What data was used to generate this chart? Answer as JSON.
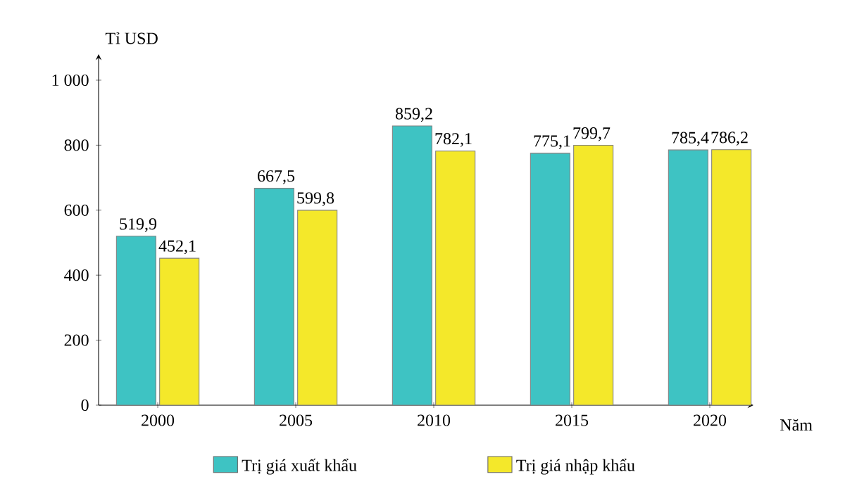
{
  "chart_data": {
    "type": "bar",
    "xlabel": "Năm",
    "ylabel": "Tỉ USD",
    "categories": [
      "2000",
      "2005",
      "2010",
      "2015",
      "2020"
    ],
    "series": [
      {
        "name": "Trị giá xuất khẩu",
        "color": "#3ec3c3",
        "values": [
          519.9,
          667.5,
          859.2,
          775.1,
          785.4
        ],
        "value_labels": [
          "519,9",
          "667,5",
          "859,2",
          "775,1",
          "785,4"
        ]
      },
      {
        "name": "Trị giá nhập khẩu",
        "color": "#f4e82a",
        "values": [
          452.1,
          599.8,
          782.1,
          799.7,
          786.2
        ],
        "value_labels": [
          "452,1",
          "599,8",
          "782,1",
          "799,7",
          "786,2"
        ]
      }
    ],
    "ylim": [
      0,
      1080
    ],
    "yticks": [
      0,
      200,
      400,
      600,
      800,
      {
        "value": 1000,
        "label": "1 000"
      }
    ],
    "legend": "bottom"
  }
}
